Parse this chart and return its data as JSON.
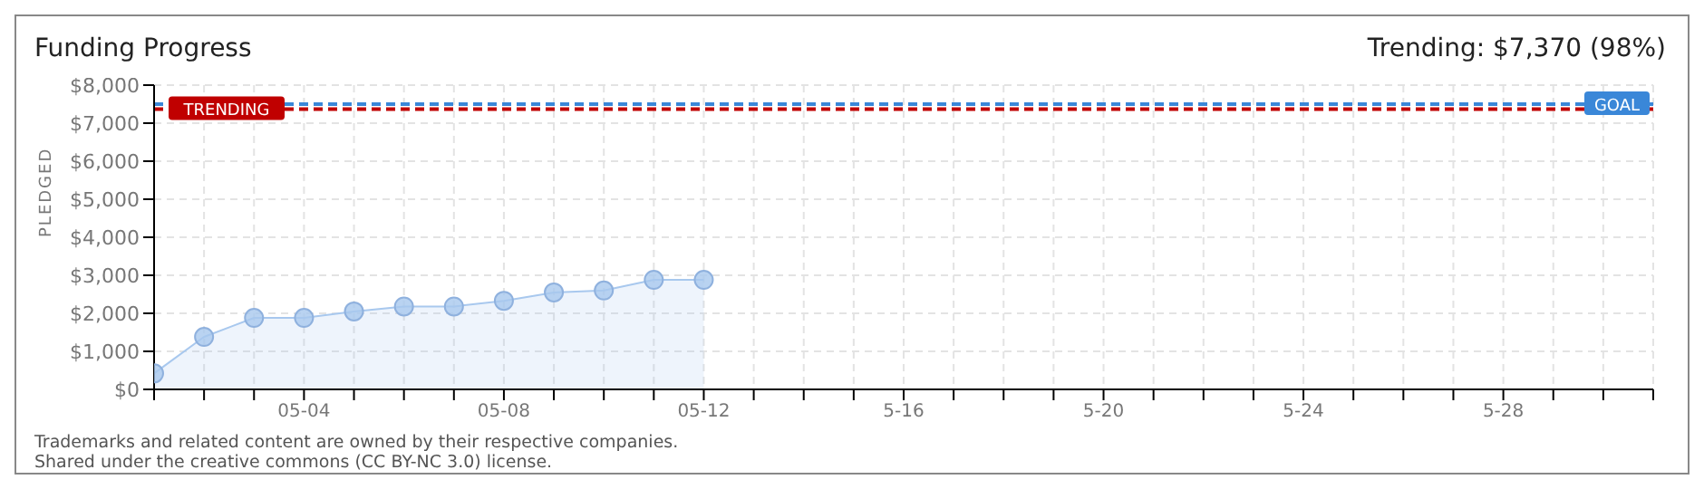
{
  "chart_data": {
    "type": "area",
    "title": "Funding Progress",
    "ylabel": "PLEDGED",
    "annotations": [
      "Trending: $7,370 (98%)",
      "Trademarks and related content are owned by their respective companies.",
      "Shared under the creative commons (CC BY-NC 3.0) license."
    ],
    "x": [
      "--05-01",
      "--05-02",
      "--05-03",
      "--05-04",
      "--05-05",
      "--05-06",
      "--05-07",
      "--05-08",
      "--05-09",
      "--05-10",
      "--05-11",
      "--05-12"
    ],
    "series": [
      {
        "color": "#a8c8ee",
        "values": [
          420,
          1380,
          1880,
          1880,
          2050,
          2180,
          2180,
          2330,
          2550,
          2600,
          2880,
          2880
        ]
      }
    ],
    "xlim": [
      "--05-01",
      "--05-31"
    ],
    "xticks": [
      {
        "value": "--05-01",
        "label": null
      },
      {
        "value": "--05-02",
        "label": null
      },
      {
        "value": "--05-03",
        "label": null
      },
      {
        "value": "--05-04",
        "label": "05-04"
      },
      {
        "value": "--05-05",
        "label": null
      },
      {
        "value": "--05-06",
        "label": null
      },
      {
        "value": "--05-07",
        "label": null
      },
      {
        "value": "--05-08",
        "label": "05-08"
      },
      {
        "value": "--05-09",
        "label": null
      },
      {
        "value": "--05-10",
        "label": null
      },
      {
        "value": "--05-11",
        "label": null
      },
      {
        "value": "--05-12",
        "label": "05-12"
      },
      {
        "value": "--05-13",
        "label": null
      },
      {
        "value": "--05-14",
        "label": null
      },
      {
        "value": "--05-15",
        "label": null
      },
      {
        "value": "--05-16",
        "label": "5-16"
      },
      {
        "value": "--05-17",
        "label": null
      },
      {
        "value": "--05-18",
        "label": null
      },
      {
        "value": "--05-19",
        "label": null
      },
      {
        "value": "--05-20",
        "label": "5-20"
      },
      {
        "value": "--05-21",
        "label": null
      },
      {
        "value": "--05-22",
        "label": null
      },
      {
        "value": "--05-23",
        "label": null
      },
      {
        "value": "--05-24",
        "label": "5-24"
      },
      {
        "value": "--05-25",
        "label": null
      },
      {
        "value": "--05-26",
        "label": null
      },
      {
        "value": "--05-27",
        "label": null
      },
      {
        "value": "--05-28",
        "label": "5-28"
      },
      {
        "value": "--05-29",
        "label": null
      },
      {
        "value": "--05-30",
        "label": null
      },
      {
        "value": "--05-31",
        "label": null
      }
    ],
    "ylim": [
      0,
      8000
    ],
    "yticks": [
      {
        "value": 0,
        "label": "$0"
      },
      {
        "value": 1000,
        "label": "$1,000"
      },
      {
        "value": 2000,
        "label": "$2,000"
      },
      {
        "value": 3000,
        "label": "$3,000"
      },
      {
        "value": 4000,
        "label": "$4,000"
      },
      {
        "value": 5000,
        "label": "$5,000"
      },
      {
        "value": 6000,
        "label": "$6,000"
      },
      {
        "value": 7000,
        "label": "$7,000"
      },
      {
        "value": 8000,
        "label": "$8,000"
      }
    ],
    "ref_lines": [
      {
        "axis": "y",
        "value": 7500,
        "label": "GOAL",
        "color": "#3a87d8",
        "line_style": "dashed"
      },
      {
        "axis": "y",
        "value": 7370,
        "label": "TRENDING",
        "color": "#c00000",
        "line_style": "dashed"
      }
    ],
    "grid": true,
    "marker": "circle",
    "line_style": "solid"
  }
}
